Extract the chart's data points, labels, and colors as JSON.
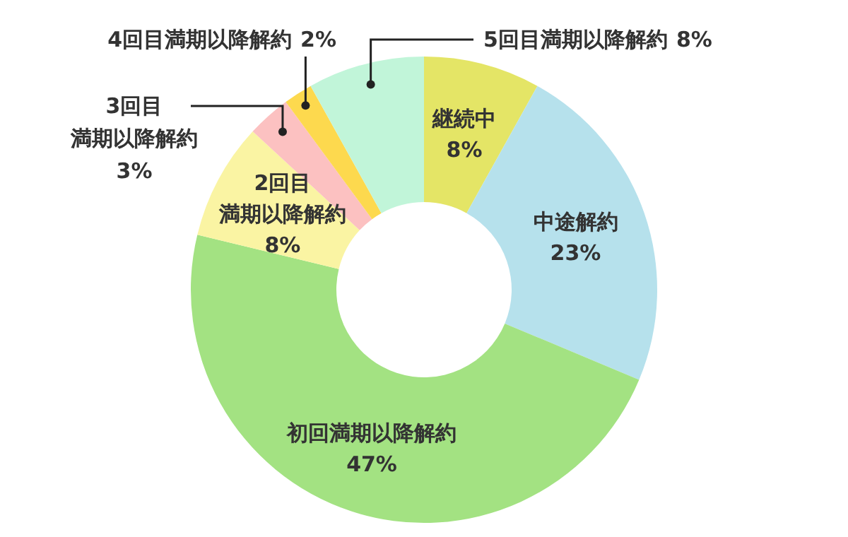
{
  "chart_data": {
    "type": "donut",
    "categories": [
      "継続中",
      "中途解約",
      "初回満期以降解約",
      "2回目満期以降解約",
      "3回目満期以降解約",
      "4回目満期以降解約",
      "5回目満期以降解約"
    ],
    "values": [
      8,
      23,
      47,
      8,
      3,
      2,
      8
    ],
    "colors": [
      "#e4e566",
      "#b6e1ec",
      "#a3e282",
      "#faf4a3",
      "#fcc1c1",
      "#fdd94e",
      "#c1f5d9"
    ],
    "value_labels": [
      "8%",
      "23%",
      "47%",
      "8%",
      "3%",
      "2%",
      "8%"
    ]
  }
}
